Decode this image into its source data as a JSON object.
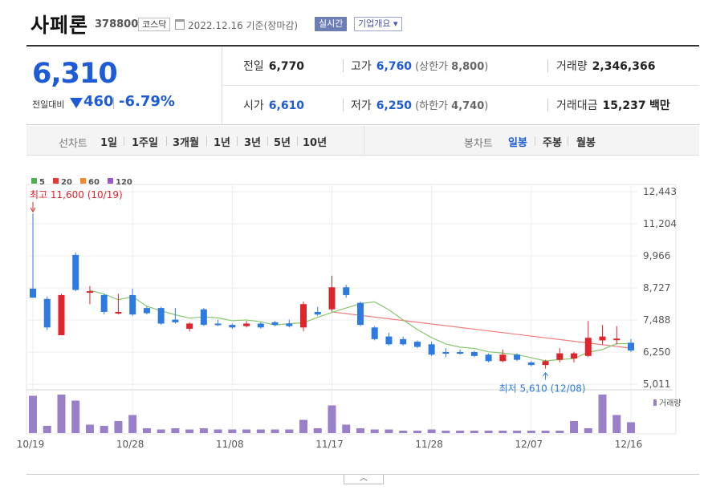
{
  "header": {
    "name": "사페론",
    "code": "378800",
    "market": "코스닥",
    "date": "2022.12.16 기준(장마감)",
    "realtime": "실시간",
    "corp_overview": "기업개요 ▾"
  },
  "summary": {
    "price": "6,310",
    "vs_label": "전일대비",
    "change": "460",
    "change_pct": "-6.79%",
    "prev_label": "전일",
    "prev": "6,770",
    "high_label": "고가",
    "high": "6,760",
    "upper_label": "(상한가",
    "upper": "8,800",
    "close_paren": ")",
    "volume_label": "거래량",
    "volume": "2,346,366",
    "open_label": "시가",
    "open": "6,610",
    "low_label": "저가",
    "low": "6,250",
    "lower_label": "(하한가",
    "lower": "4,740",
    "amount_label": "거래대금",
    "amount": "15,237",
    "amount_unit": "백만"
  },
  "period": {
    "line_label": "선차트",
    "line_opts": [
      "1일",
      "1주일",
      "3개월",
      "1년",
      "3년",
      "5년",
      "10년"
    ],
    "candle_label": "봉차트",
    "candle_opts": [
      "일봉",
      "주봉",
      "월봉"
    ],
    "candle_selected": 0
  },
  "colors": {
    "up": "#e0242b",
    "down": "#2d7be0",
    "ma5": "#86c66a",
    "ma20": "#f07a7a",
    "ma60": "#f28a2c",
    "ma120": "#9b6fc2",
    "volume": "#9a7fc9"
  },
  "chart_data": {
    "type": "candlestick",
    "legend": [
      {
        "name": "5",
        "color": "#4caf50"
      },
      {
        "name": "20",
        "color": "#e53935"
      },
      {
        "name": "60",
        "color": "#f28a2c"
      },
      {
        "name": "120",
        "color": "#9b59c6"
      }
    ],
    "y_ticks": [
      "12,443",
      "11,204",
      "9,966",
      "8,727",
      "7,488",
      "6,250",
      "5,011"
    ],
    "ylim": [
      5011,
      12443
    ],
    "x_ticks": [
      {
        "label": "10/19",
        "index": 0
      },
      {
        "label": "10/28",
        "index": 7
      },
      {
        "label": "11/08",
        "index": 14
      },
      {
        "label": "11/17",
        "index": 21
      },
      {
        "label": "11/28",
        "index": 28
      },
      {
        "label": "12/07",
        "index": 35
      },
      {
        "label": "12/16",
        "index": 42
      }
    ],
    "high_annotation": {
      "text": "최고 11,600 (10/19)",
      "index": 0,
      "value": 11600
    },
    "low_annotation": {
      "text": "최저 5,610 (12/08)",
      "index": 36,
      "value": 5610
    },
    "volume_label": "거래량",
    "candles": [
      {
        "d": "10/19",
        "o": 8700,
        "h": 11600,
        "l": 8350,
        "c": 8350
      },
      {
        "d": "10/20",
        "o": 8300,
        "h": 8400,
        "l": 7100,
        "c": 7200
      },
      {
        "d": "10/21",
        "o": 6900,
        "h": 8500,
        "l": 6900,
        "c": 8450
      },
      {
        "d": "10/24",
        "o": 10000,
        "h": 10100,
        "l": 8600,
        "c": 8650
      },
      {
        "d": "10/25",
        "o": 8600,
        "h": 8800,
        "l": 8100,
        "c": 8600
      },
      {
        "d": "10/26",
        "o": 8450,
        "h": 8500,
        "l": 7700,
        "c": 7800
      },
      {
        "d": "10/27",
        "o": 7800,
        "h": 8500,
        "l": 7700,
        "c": 7800
      },
      {
        "d": "10/28",
        "o": 8450,
        "h": 8700,
        "l": 7650,
        "c": 7700
      },
      {
        "d": "10/31",
        "o": 7950,
        "h": 8000,
        "l": 7700,
        "c": 7750
      },
      {
        "d": "11/01",
        "o": 7950,
        "h": 8000,
        "l": 7300,
        "c": 7350
      },
      {
        "d": "11/02",
        "o": 7500,
        "h": 7950,
        "l": 7350,
        "c": 7400
      },
      {
        "d": "11/03",
        "o": 7150,
        "h": 7400,
        "l": 7050,
        "c": 7350
      },
      {
        "d": "11/04",
        "o": 7900,
        "h": 7950,
        "l": 7250,
        "c": 7300
      },
      {
        "d": "11/07",
        "o": 7350,
        "h": 7500,
        "l": 7250,
        "c": 7300
      },
      {
        "d": "11/08",
        "o": 7300,
        "h": 7350,
        "l": 7150,
        "c": 7200
      },
      {
        "d": "11/09",
        "o": 7250,
        "h": 7450,
        "l": 7200,
        "c": 7350
      },
      {
        "d": "11/10",
        "o": 7350,
        "h": 7400,
        "l": 7150,
        "c": 7200
      },
      {
        "d": "11/11",
        "o": 7400,
        "h": 7450,
        "l": 7250,
        "c": 7300
      },
      {
        "d": "11/14",
        "o": 7350,
        "h": 7500,
        "l": 7200,
        "c": 7250
      },
      {
        "d": "11/15",
        "o": 7200,
        "h": 8200,
        "l": 7050,
        "c": 8100
      },
      {
        "d": "11/16",
        "o": 7800,
        "h": 8000,
        "l": 7650,
        "c": 7700
      },
      {
        "d": "11/17",
        "o": 7900,
        "h": 9200,
        "l": 7800,
        "c": 8750
      },
      {
        "d": "11/18",
        "o": 8750,
        "h": 8850,
        "l": 8350,
        "c": 8450
      },
      {
        "d": "11/21",
        "o": 8150,
        "h": 8200,
        "l": 7250,
        "c": 7300
      },
      {
        "d": "11/22",
        "o": 7200,
        "h": 7250,
        "l": 6700,
        "c": 6750
      },
      {
        "d": "11/23",
        "o": 6850,
        "h": 7000,
        "l": 6500,
        "c": 6550
      },
      {
        "d": "11/24",
        "o": 6750,
        "h": 6850,
        "l": 6500,
        "c": 6550
      },
      {
        "d": "11/25",
        "o": 6650,
        "h": 6700,
        "l": 6400,
        "c": 6450
      },
      {
        "d": "11/28",
        "o": 6550,
        "h": 6650,
        "l": 6100,
        "c": 6150
      },
      {
        "d": "11/29",
        "o": 6250,
        "h": 6400,
        "l": 6050,
        "c": 6200
      },
      {
        "d": "11/30",
        "o": 6250,
        "h": 6350,
        "l": 6150,
        "c": 6200
      },
      {
        "d": "12/01",
        "o": 6250,
        "h": 6300,
        "l": 6050,
        "c": 6100
      },
      {
        "d": "12/02",
        "o": 6150,
        "h": 6200,
        "l": 5850,
        "c": 5900
      },
      {
        "d": "12/05",
        "o": 5900,
        "h": 6350,
        "l": 5850,
        "c": 6150
      },
      {
        "d": "12/06",
        "o": 6150,
        "h": 6200,
        "l": 5900,
        "c": 5950
      },
      {
        "d": "12/07",
        "o": 5850,
        "h": 5900,
        "l": 5700,
        "c": 5750
      },
      {
        "d": "12/08",
        "o": 5750,
        "h": 5950,
        "l": 5610,
        "c": 5900
      },
      {
        "d": "12/09",
        "o": 5950,
        "h": 6400,
        "l": 5850,
        "c": 6200
      },
      {
        "d": "12/12",
        "o": 6000,
        "h": 6250,
        "l": 5850,
        "c": 6200
      },
      {
        "d": "12/13",
        "o": 6100,
        "h": 7450,
        "l": 6050,
        "c": 6800
      },
      {
        "d": "12/14",
        "o": 6700,
        "h": 7300,
        "l": 6550,
        "c": 6850
      },
      {
        "d": "12/15",
        "o": 6750,
        "h": 7250,
        "l": 6550,
        "c": 6770
      },
      {
        "d": "12/16",
        "o": 6610,
        "h": 6760,
        "l": 6250,
        "c": 6310
      }
    ],
    "volume": [
      3.1,
      0.6,
      3.2,
      2.7,
      0.7,
      0.6,
      1.0,
      1.5,
      0.4,
      0.3,
      0.4,
      0.3,
      0.4,
      0.3,
      0.3,
      0.3,
      0.3,
      0.3,
      0.3,
      1.1,
      0.4,
      2.3,
      0.7,
      0.4,
      0.3,
      0.3,
      0.2,
      0.2,
      0.3,
      0.2,
      0.2,
      0.2,
      0.2,
      0.2,
      0.2,
      0.2,
      0.2,
      0.2,
      1.0,
      0.4,
      3.2,
      1.5,
      0.9
    ],
    "ma5": [
      null,
      null,
      null,
      null,
      8630,
      8490,
      8270,
      8390,
      8020,
      7840,
      7690,
      7560,
      7610,
      7570,
      7460,
      7490,
      7420,
      7290,
      7350,
      7380,
      7590,
      7780,
      7950,
      8120,
      8190,
      7880,
      7490,
      7120,
      6810,
      6560,
      6440,
      6390,
      6260,
      6210,
      6150,
      6030,
      5910,
      5960,
      6000,
      6240,
      6350,
      6570,
      6580
    ],
    "ma20": [
      {
        "index": 21,
        "value": 7800
      },
      {
        "index": 42,
        "value": 6400
      }
    ]
  }
}
